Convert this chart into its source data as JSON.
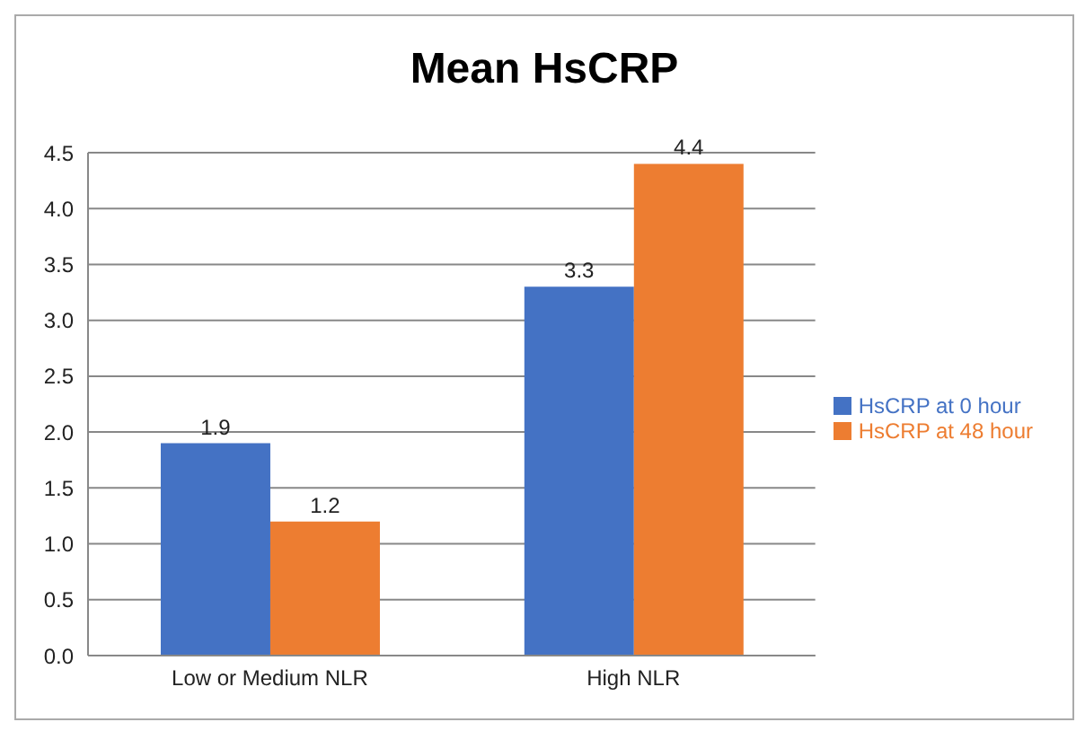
{
  "chart_data": {
    "type": "bar",
    "title": "Mean HsCRP",
    "categories": [
      "Low or Medium NLR",
      "High NLR"
    ],
    "series": [
      {
        "name": "HsCRP at 0 hour",
        "color": "#4472c4",
        "values": [
          1.9,
          3.3
        ]
      },
      {
        "name": "HsCRP at 48 hour",
        "color": "#ed7d31",
        "values": [
          1.2,
          4.4
        ]
      }
    ],
    "ylim": [
      0,
      4.5
    ],
    "yticks": [
      {
        "value": 0,
        "label": "0.0"
      },
      {
        "value": 0.5,
        "label": "0.5"
      },
      {
        "value": 1,
        "label": "1.0"
      },
      {
        "value": 1.5,
        "label": "1.5"
      },
      {
        "value": 2,
        "label": "2.0"
      },
      {
        "value": 2.5,
        "label": "2.5"
      },
      {
        "value": 3,
        "label": "3.0"
      },
      {
        "value": 3.5,
        "label": "3.5"
      },
      {
        "value": 4,
        "label": "4.0"
      },
      {
        "value": 4.5,
        "label": "4.5"
      }
    ],
    "grid": "y",
    "legend": "right",
    "data_labels": true
  }
}
